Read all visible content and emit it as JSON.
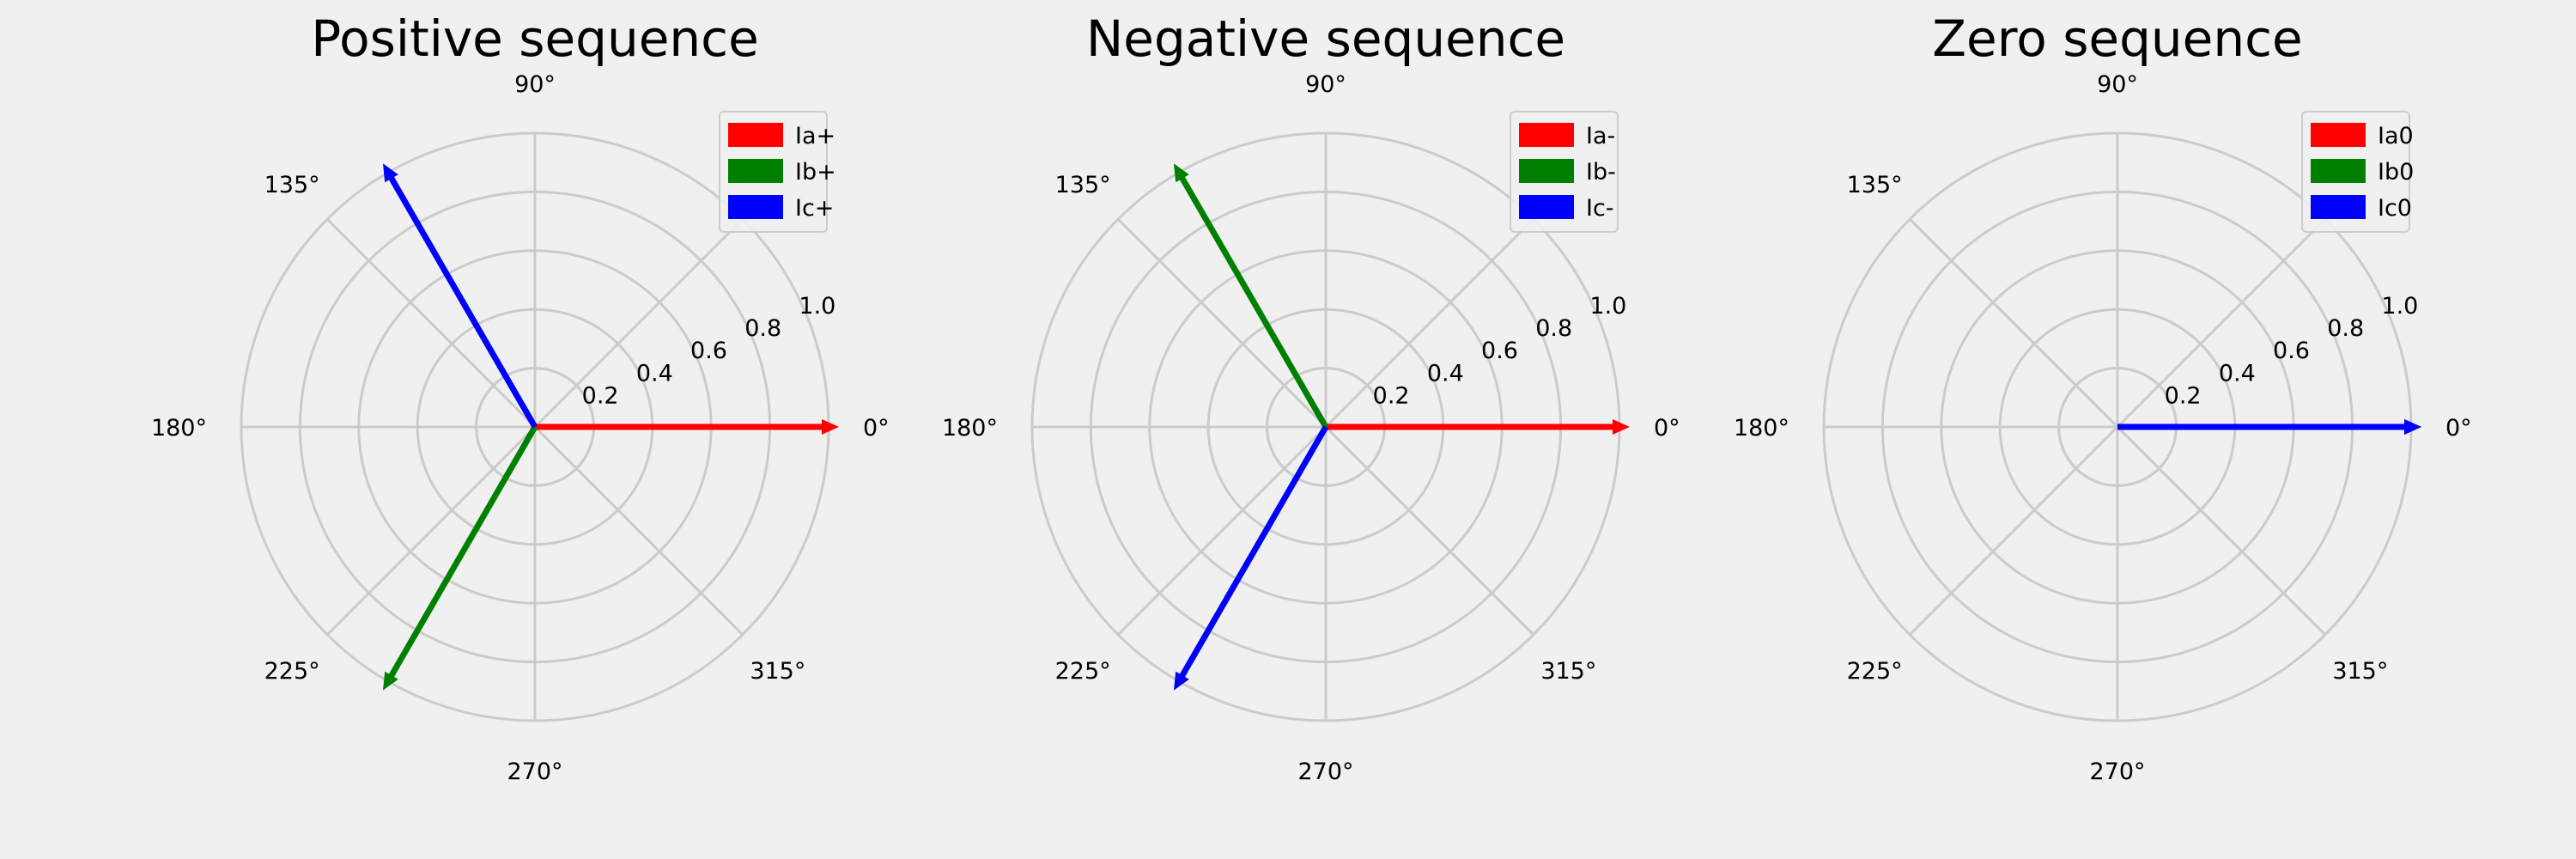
{
  "figure": {
    "background": "#f0f0f0",
    "grid_color": "#cbcbcb",
    "style": "fivethirtyeight"
  },
  "chart_data": [
    {
      "type": "polar-phasor",
      "title": "Positive sequence",
      "angle_ticks": [
        "0°",
        "45°",
        "90°",
        "135°",
        "180°",
        "225°",
        "270°",
        "315°"
      ],
      "radial_ticks": [
        "0.2",
        "0.4",
        "0.6",
        "0.8",
        "1.0"
      ],
      "rlim": [
        0,
        1.0
      ],
      "legend": {
        "placement": "top-right"
      },
      "series": [
        {
          "name": "Ia+",
          "color": "#ff0000",
          "magnitude": 1.0,
          "angle_deg": 0
        },
        {
          "name": "Ib+",
          "color": "#008000",
          "magnitude": 1.0,
          "angle_deg": 240
        },
        {
          "name": "Ic+",
          "color": "#0000ff",
          "magnitude": 1.0,
          "angle_deg": 120
        }
      ]
    },
    {
      "type": "polar-phasor",
      "title": "Negative sequence",
      "angle_ticks": [
        "0°",
        "45°",
        "90°",
        "135°",
        "180°",
        "225°",
        "270°",
        "315°"
      ],
      "radial_ticks": [
        "0.2",
        "0.4",
        "0.6",
        "0.8",
        "1.0"
      ],
      "rlim": [
        0,
        1.0
      ],
      "legend": {
        "placement": "top-right"
      },
      "series": [
        {
          "name": "Ia-",
          "color": "#ff0000",
          "magnitude": 1.0,
          "angle_deg": 0
        },
        {
          "name": "Ib-",
          "color": "#008000",
          "magnitude": 1.0,
          "angle_deg": 120
        },
        {
          "name": "Ic-",
          "color": "#0000ff",
          "magnitude": 1.0,
          "angle_deg": 240
        }
      ]
    },
    {
      "type": "polar-phasor",
      "title": "Zero sequence",
      "angle_ticks": [
        "0°",
        "45°",
        "90°",
        "135°",
        "180°",
        "225°",
        "270°",
        "315°"
      ],
      "radial_ticks": [
        "0.2",
        "0.4",
        "0.6",
        "0.8",
        "1.0"
      ],
      "rlim": [
        0,
        1.0
      ],
      "legend": {
        "placement": "top-right"
      },
      "series": [
        {
          "name": "Ia0",
          "color": "#ff0000",
          "magnitude": 1.0,
          "angle_deg": 0
        },
        {
          "name": "Ib0",
          "color": "#008000",
          "magnitude": 1.0,
          "angle_deg": 0
        },
        {
          "name": "Ic0",
          "color": "#0000ff",
          "magnitude": 1.0,
          "angle_deg": 0
        }
      ]
    }
  ]
}
